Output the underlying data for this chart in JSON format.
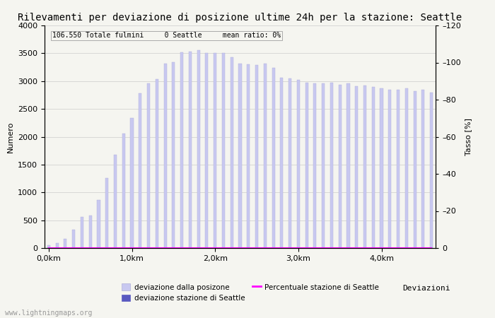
{
  "title": "Rilevamenti per deviazione di posizione ultime 24h per la stazione: Seattle",
  "xlabel": "Deviazioni",
  "ylabel_left": "Numero",
  "ylabel_right": "Tasso [%]",
  "annotation": "106.550 Totale fulmini     0 Seattle     mean ratio: 0%",
  "watermark": "www.lightningmaps.org",
  "bar_values": [
    50,
    90,
    170,
    330,
    560,
    580,
    860,
    1260,
    1670,
    2060,
    2340,
    2780,
    2960,
    3040,
    3310,
    3340,
    3520,
    3530,
    3560,
    3500,
    3500,
    3500,
    3430,
    3310,
    3300,
    3290,
    3310,
    3240,
    3060,
    3050,
    3020,
    2970,
    2960,
    2960,
    2970,
    2930,
    2960,
    2910,
    2920,
    2890,
    2870,
    2850,
    2840,
    2870,
    2820,
    2840,
    2800
  ],
  "bar_color": "#c8c8f0",
  "bar_edge_color": "#b0b0d8",
  "seattle_bar_color": "#5858c0",
  "seattle_values": [
    0,
    0,
    0,
    0,
    0,
    0,
    0,
    0,
    0,
    0,
    0,
    0,
    0,
    0,
    0,
    0,
    0,
    0,
    0,
    0,
    0,
    0,
    0,
    0,
    0,
    0,
    0,
    0,
    0,
    0,
    0,
    0,
    0,
    0,
    0,
    0,
    0,
    0,
    0,
    0,
    0,
    0,
    0,
    0,
    0,
    0,
    0
  ],
  "ratio_values": [
    0,
    0,
    0,
    0,
    0,
    0,
    0,
    0,
    0,
    0,
    0,
    0,
    0,
    0,
    0,
    0,
    0,
    0,
    0,
    0,
    0,
    0,
    0,
    0,
    0,
    0,
    0,
    0,
    0,
    0,
    0,
    0,
    0,
    0,
    0,
    0,
    0,
    0,
    0,
    0,
    0,
    0,
    0,
    0,
    0,
    0,
    0
  ],
  "x_tick_positions": [
    0,
    10,
    20,
    30,
    40
  ],
  "x_tick_labels": [
    "0,0km",
    "1,0km",
    "2,0km",
    "3,0km",
    "4,0km"
  ],
  "ylim_left": [
    0,
    4000
  ],
  "ylim_right": [
    0,
    120
  ],
  "yticks_left": [
    0,
    500,
    1000,
    1500,
    2000,
    2500,
    3000,
    3500,
    4000
  ],
  "yticks_right": [
    0,
    20,
    40,
    60,
    80,
    100,
    120
  ],
  "ytick_right_labels": [
    "0",
    "–20",
    "–40",
    "–60",
    "–80",
    "–100",
    "–120"
  ],
  "background_color": "#f5f5f0",
  "grid_color": "#cccccc",
  "title_fontsize": 10,
  "label_fontsize": 8,
  "tick_fontsize": 8,
  "legend_label_total": "deviazione dalla posizone",
  "legend_label_seattle": "deviazione stazione di Seattle",
  "legend_label_ratio": "Percentuale stazione di Seattle",
  "ratio_line_color": "#ff00ff"
}
